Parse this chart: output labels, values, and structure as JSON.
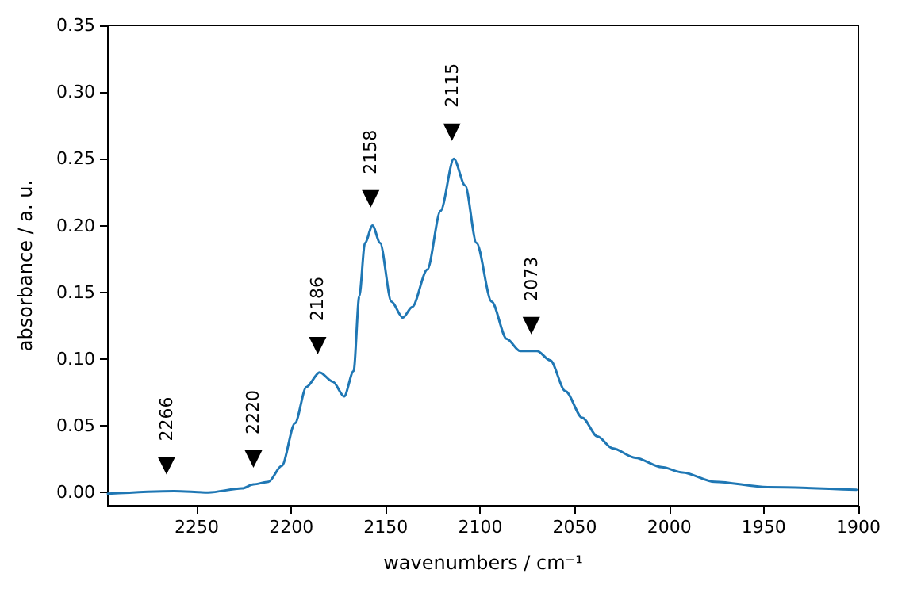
{
  "chart_data": {
    "type": "line",
    "xlabel": "wavenumbers / cm⁻¹",
    "ylabel": "absorbance / a. u.",
    "x": [
      2297,
      2262,
      2244,
      2226,
      2220,
      2212,
      2205,
      2198,
      2192,
      2185,
      2178,
      2172,
      2167,
      2164,
      2161,
      2157,
      2153,
      2147,
      2141,
      2136,
      2128,
      2121,
      2114,
      2108,
      2102,
      2094,
      2086,
      2079,
      2070,
      2063,
      2055,
      2046,
      2038,
      2030,
      2018,
      2004,
      1993,
      1976,
      1948,
      1901
    ],
    "series": [
      {
        "color": "#1f77b4",
        "values": [
          -0.001,
          0.001,
          0.0,
          0.003,
          0.006,
          0.008,
          0.02,
          0.052,
          0.079,
          0.09,
          0.083,
          0.072,
          0.091,
          0.147,
          0.187,
          0.2,
          0.187,
          0.143,
          0.131,
          0.139,
          0.167,
          0.211,
          0.25,
          0.23,
          0.187,
          0.143,
          0.115,
          0.106,
          0.106,
          0.099,
          0.076,
          0.056,
          0.042,
          0.033,
          0.026,
          0.019,
          0.015,
          0.008,
          0.004,
          0.002
        ]
      }
    ],
    "annotations": [
      {
        "text": "2266",
        "x": 2266,
        "y": 0.02
      },
      {
        "text": "2220",
        "x": 2220,
        "y": 0.025
      },
      {
        "text": "2186",
        "x": 2186,
        "y": 0.11
      },
      {
        "text": "2158",
        "x": 2158,
        "y": 0.22
      },
      {
        "text": "2115",
        "x": 2115,
        "y": 0.27
      },
      {
        "text": "2073",
        "x": 2073,
        "y": 0.125
      }
    ],
    "xlim": [
      2297,
      1900
    ],
    "xticks": [
      2250,
      2200,
      2150,
      2100,
      2050,
      2000,
      1950,
      1900
    ],
    "ylim": [
      -0.01,
      0.35
    ],
    "yticks": [
      {
        "value": 0,
        "label": "0.00"
      },
      {
        "value": 0.05,
        "label": "0.05"
      },
      {
        "value": 0.1,
        "label": "0.10"
      },
      {
        "value": 0.15,
        "label": "0.15"
      },
      {
        "value": 0.2,
        "label": "0.20"
      },
      {
        "value": 0.25,
        "label": "0.25"
      },
      {
        "value": 0.3,
        "label": "0.30"
      },
      {
        "value": 0.35,
        "label": "0.35"
      }
    ],
    "grid": false,
    "marker": "none",
    "line_style": "solid"
  }
}
